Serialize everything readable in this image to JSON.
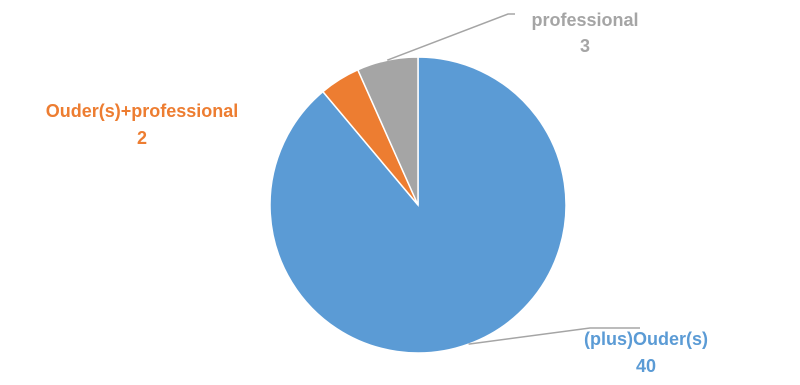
{
  "chart_data": {
    "type": "pie",
    "categories": [
      "(plus)Ouder(s)",
      "Ouder(s)+professional",
      "professional"
    ],
    "values": [
      40,
      2,
      3
    ],
    "colors": [
      "#5B9BD5",
      "#ED7D31",
      "#A5A5A5"
    ],
    "label_colors": [
      "#5B9BD5",
      "#ED7D31",
      "#A5A5A5"
    ],
    "start_angle": "12 o'clock",
    "direction": "clockwise",
    "legend": "none",
    "data_labels": "category and value, outside with leader lines"
  }
}
